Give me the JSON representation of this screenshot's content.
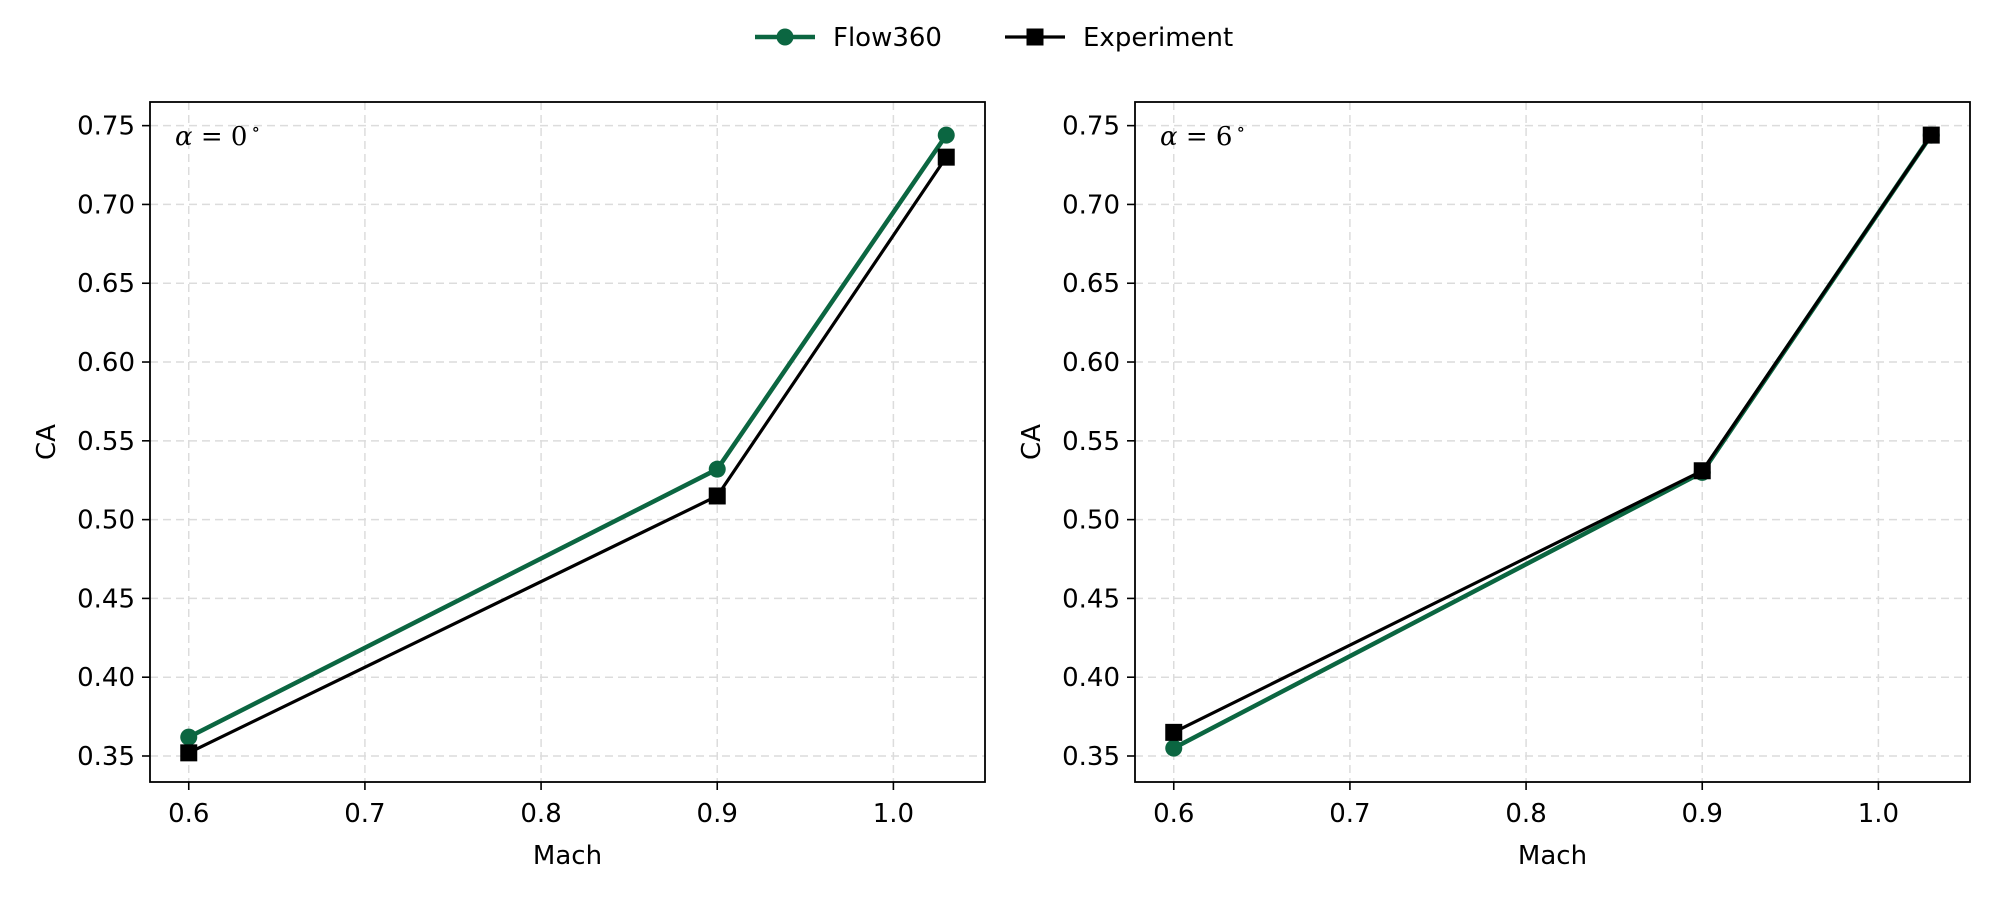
{
  "colors": {
    "flow360": "#0b6641",
    "experiment": "#000000",
    "grid": "#dcdcdc",
    "axis": "#000000"
  },
  "legend": [
    {
      "name": "Flow360",
      "marker": "circle",
      "color": "#0b6641"
    },
    {
      "name": "Experiment",
      "marker": "square",
      "color": "#000000"
    }
  ],
  "chart_data": [
    {
      "type": "line",
      "annotation": {
        "symbol": "α",
        "text": " = 0",
        "degree": "∘"
      },
      "xlabel": "Mach",
      "ylabel": "CA",
      "xlim": [
        0.578,
        1.052
      ],
      "ylim": [
        0.3335,
        0.765
      ],
      "xticks": [
        0.6,
        0.7,
        0.8,
        0.9,
        1.0
      ],
      "xtick_labels": [
        "0.6",
        "0.7",
        "0.8",
        "0.9",
        "1.0"
      ],
      "yticks": [
        0.35,
        0.4,
        0.45,
        0.5,
        0.55,
        0.6,
        0.65,
        0.7,
        0.75
      ],
      "ytick_labels": [
        "0.35",
        "0.40",
        "0.45",
        "0.50",
        "0.55",
        "0.60",
        "0.65",
        "0.70",
        "0.75"
      ],
      "grid": true,
      "x": [
        0.6,
        0.9,
        1.03
      ],
      "series": [
        {
          "name": "Flow360",
          "values": [
            0.362,
            0.532,
            0.744
          ]
        },
        {
          "name": "Experiment",
          "values": [
            0.352,
            0.515,
            0.73
          ]
        }
      ]
    },
    {
      "type": "line",
      "annotation": {
        "symbol": "α",
        "text": " = 6",
        "degree": "∘"
      },
      "xlabel": "Mach",
      "ylabel": "CA",
      "xlim": [
        0.578,
        1.052
      ],
      "ylim": [
        0.3335,
        0.765
      ],
      "xticks": [
        0.6,
        0.7,
        0.8,
        0.9,
        1.0
      ],
      "xtick_labels": [
        "0.6",
        "0.7",
        "0.8",
        "0.9",
        "1.0"
      ],
      "yticks": [
        0.35,
        0.4,
        0.45,
        0.5,
        0.55,
        0.6,
        0.65,
        0.7,
        0.75
      ],
      "ytick_labels": [
        "0.35",
        "0.40",
        "0.45",
        "0.50",
        "0.55",
        "0.60",
        "0.65",
        "0.70",
        "0.75"
      ],
      "grid": true,
      "x": [
        0.6,
        0.9,
        1.03
      ],
      "series": [
        {
          "name": "Flow360",
          "values": [
            0.355,
            0.53,
            0.744
          ]
        },
        {
          "name": "Experiment",
          "values": [
            0.365,
            0.531,
            0.744
          ]
        }
      ]
    }
  ]
}
